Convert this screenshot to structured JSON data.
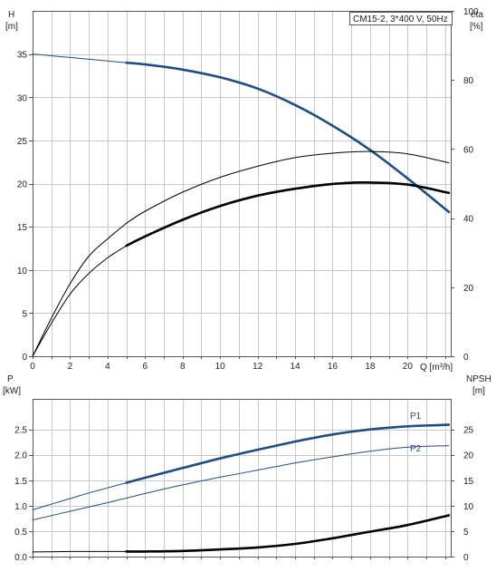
{
  "colors": {
    "blue": "#1f4e85",
    "black": "#000000",
    "grid": "#c8c8c8"
  },
  "chart_data": [
    {
      "type": "line",
      "title": "CM15-2, 3*400 V, 50Hz",
      "xlabel": "Q [m³/h]",
      "ylabel_top": "H",
      "ylabel_unit": "[m]",
      "y2label_top": "eta",
      "y2label_unit": "[%]",
      "xlim": [
        0,
        22.3
      ],
      "ylim": [
        0,
        40
      ],
      "y2lim": [
        0,
        100
      ],
      "xticks": [
        "0",
        "2",
        "4",
        "6",
        "8",
        "10",
        "12",
        "14",
        "16",
        "18",
        "20"
      ],
      "yticks": [
        "0",
        "5",
        "10",
        "15",
        "20",
        "25",
        "30",
        "35"
      ],
      "y2ticks": [
        "0",
        "20",
        "40",
        "60",
        "80",
        "100"
      ],
      "grid": true,
      "series": [
        {
          "axis": "left",
          "color": "#1f4e85",
          "style": "thin",
          "x": [
            0,
            1,
            2,
            3,
            4,
            5
          ],
          "y": [
            35.0,
            34.8,
            34.6,
            34.4,
            34.2,
            34.0
          ]
        },
        {
          "axis": "left",
          "color": "#1f4e85",
          "style": "thick",
          "x": [
            5,
            6,
            8,
            10,
            12,
            14,
            16,
            18,
            20,
            22.2
          ],
          "y": [
            34.0,
            33.8,
            33.2,
            32.3,
            31.0,
            29.1,
            26.7,
            23.9,
            20.6,
            16.7
          ]
        },
        {
          "axis": "right",
          "color": "#000000",
          "style": "thin",
          "x": [
            0,
            1,
            2,
            3,
            4,
            5
          ],
          "y": [
            0,
            11,
            21,
            29,
            34,
            38.5
          ]
        },
        {
          "axis": "right",
          "color": "#000000",
          "style": "thin",
          "x": [
            5,
            6,
            8,
            10,
            12,
            14,
            16,
            18,
            20,
            22.2
          ],
          "y": [
            38.5,
            42,
            47.5,
            51.8,
            55.0,
            57.5,
            58.8,
            59.3,
            58.6,
            56.0
          ]
        },
        {
          "axis": "right",
          "color": "#000000",
          "style": "thin",
          "x": [
            0,
            1,
            2,
            3,
            4,
            5
          ],
          "y": [
            0,
            9.5,
            18,
            24,
            28.5,
            32
          ]
        },
        {
          "axis": "right",
          "color": "#000000",
          "style": "thick",
          "x": [
            5,
            6,
            8,
            10,
            12,
            14,
            16,
            18,
            20,
            22.2
          ],
          "y": [
            32,
            34.7,
            39.5,
            43.5,
            46.5,
            48.5,
            49.9,
            50.3,
            49.7,
            47.3
          ]
        }
      ]
    },
    {
      "type": "line",
      "xlabel": "",
      "ylabel_top": "P",
      "ylabel_unit": "[kW]",
      "y2label_top": "NPSH",
      "y2label_unit": "[m]",
      "xlim": [
        0,
        22.3
      ],
      "ylim": [
        0,
        3.1
      ],
      "y2lim": [
        0,
        31
      ],
      "yticks": [
        "0.0",
        "0.5",
        "1.0",
        "1.5",
        "2.0",
        "2.5"
      ],
      "y2ticks": [
        "0",
        "5",
        "10",
        "15",
        "20",
        "25"
      ],
      "grid": true,
      "series": [
        {
          "name": "P1",
          "axis": "left",
          "color": "#1f4e85",
          "style": "thin",
          "x": [
            0,
            1,
            2,
            3,
            4,
            5
          ],
          "y": [
            0.92,
            1.03,
            1.14,
            1.25,
            1.35,
            1.45
          ]
        },
        {
          "name": "P1",
          "axis": "left",
          "color": "#1f4e85",
          "style": "thick",
          "x": [
            5,
            6,
            8,
            10,
            12,
            14,
            16,
            18,
            20,
            22.2
          ],
          "y": [
            1.45,
            1.55,
            1.74,
            1.93,
            2.1,
            2.26,
            2.4,
            2.5,
            2.56,
            2.59
          ]
        },
        {
          "name": "P2",
          "axis": "left",
          "color": "#1f4e85",
          "style": "thin",
          "x": [
            0,
            2,
            4,
            5,
            6,
            8,
            10,
            12,
            14,
            16,
            18,
            20,
            22.2
          ],
          "y": [
            0.72,
            0.89,
            1.06,
            1.15,
            1.24,
            1.41,
            1.56,
            1.7,
            1.84,
            1.96,
            2.07,
            2.15,
            2.18
          ]
        },
        {
          "axis": "right",
          "color": "#000000",
          "style": "thin",
          "x": [
            0,
            2,
            4,
            5
          ],
          "y": [
            0.9,
            1.0,
            1.0,
            1.0
          ]
        },
        {
          "axis": "right",
          "color": "#000000",
          "style": "thick",
          "x": [
            5,
            6,
            8,
            10,
            12,
            14,
            16,
            18,
            20,
            22.2
          ],
          "y": [
            1.0,
            1.0,
            1.1,
            1.4,
            1.8,
            2.5,
            3.6,
            4.9,
            6.2,
            8.1
          ]
        }
      ],
      "labels": [
        {
          "text": "P1",
          "color": "#1f4e85",
          "series": "P1"
        },
        {
          "text": "P2",
          "color": "#1f4e85",
          "series": "P2"
        }
      ]
    }
  ]
}
